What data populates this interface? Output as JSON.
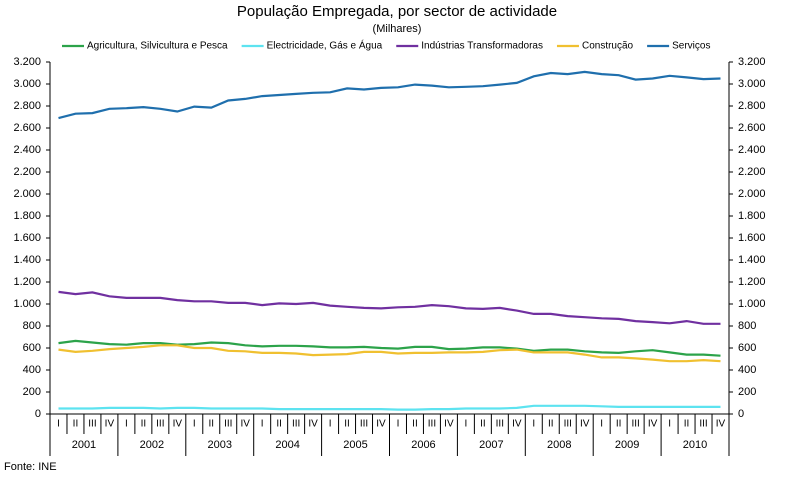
{
  "chart_data": {
    "type": "line",
    "title": "População Empregada, por sector de actividade",
    "subtitle": "(Milhares)",
    "source": "Fonte: INE",
    "categories": [
      "I",
      "II",
      "III",
      "IV",
      "I",
      "II",
      "III",
      "IV",
      "I",
      "II",
      "III",
      "IV",
      "I",
      "II",
      "III",
      "IV",
      "I",
      "II",
      "III",
      "IV",
      "I",
      "II",
      "III",
      "IV",
      "I",
      "II",
      "III",
      "IV",
      "I",
      "II",
      "III",
      "IV",
      "I",
      "II",
      "III",
      "IV",
      "I",
      "II",
      "III",
      "IV"
    ],
    "x_groups": [
      "2001",
      "2002",
      "2003",
      "2004",
      "2005",
      "2006",
      "2007",
      "2008",
      "2009",
      "2010"
    ],
    "series": [
      {
        "name": "Agricultura, Silvicultura e Pesca",
        "color": "#2ca34a",
        "values": [
          645,
          665,
          650,
          635,
          630,
          645,
          645,
          630,
          635,
          650,
          645,
          625,
          615,
          620,
          620,
          615,
          605,
          605,
          610,
          600,
          595,
          610,
          610,
          590,
          595,
          605,
          605,
          595,
          575,
          585,
          585,
          570,
          560,
          555,
          570,
          580,
          560,
          540,
          540,
          530
        ]
      },
      {
        "name": "Electricidade, Gás e Água",
        "color": "#5de3f0",
        "values": [
          50,
          50,
          50,
          55,
          55,
          55,
          50,
          55,
          55,
          50,
          50,
          50,
          50,
          45,
          45,
          45,
          45,
          45,
          45,
          45,
          40,
          40,
          45,
          45,
          50,
          50,
          50,
          55,
          75,
          75,
          75,
          75,
          70,
          65,
          65,
          65,
          65,
          65,
          65,
          65
        ]
      },
      {
        "name": "Indústrias Transformadoras",
        "color": "#7030a0",
        "values": [
          1110,
          1090,
          1105,
          1070,
          1055,
          1055,
          1055,
          1035,
          1025,
          1025,
          1010,
          1010,
          990,
          1005,
          1000,
          1010,
          985,
          975,
          965,
          960,
          970,
          975,
          990,
          980,
          960,
          955,
          965,
          940,
          910,
          910,
          890,
          880,
          870,
          865,
          845,
          835,
          825,
          845,
          820,
          820
        ]
      },
      {
        "name": "Construção",
        "color": "#f0c030",
        "values": [
          585,
          565,
          575,
          590,
          600,
          610,
          625,
          625,
          600,
          600,
          575,
          570,
          555,
          555,
          550,
          535,
          540,
          545,
          565,
          565,
          550,
          555,
          555,
          560,
          560,
          565,
          580,
          585,
          560,
          560,
          560,
          540,
          515,
          515,
          505,
          495,
          480,
          480,
          490,
          480
        ]
      },
      {
        "name": "Serviços",
        "color": "#1f6fad",
        "values": [
          2690,
          2730,
          2735,
          2775,
          2780,
          2790,
          2775,
          2750,
          2795,
          2785,
          2850,
          2865,
          2890,
          2900,
          2910,
          2920,
          2925,
          2960,
          2950,
          2965,
          2970,
          2995,
          2985,
          2970,
          2975,
          2980,
          2995,
          3010,
          3070,
          3100,
          3090,
          3110,
          3090,
          3080,
          3040,
          3050,
          3075,
          3060,
          3045,
          3050
        ]
      }
    ],
    "ylim": [
      0,
      3200
    ],
    "yticks": [
      0,
      200,
      400,
      600,
      800,
      {
        "value": 1000,
        "label": "1.000"
      },
      {
        "value": 1200,
        "label": "1.200"
      },
      {
        "value": 1400,
        "label": "1.400"
      },
      {
        "value": 1600,
        "label": "1.600"
      },
      {
        "value": 1800,
        "label": "1.800"
      },
      {
        "value": 2000,
        "label": "2.000"
      },
      {
        "value": 2200,
        "label": "2.200"
      },
      {
        "value": 2400,
        "label": "2.400"
      },
      {
        "value": 2600,
        "label": "2.600"
      },
      {
        "value": 2800,
        "label": "2.800"
      },
      {
        "value": 3000,
        "label": "3.000"
      },
      {
        "value": 3200,
        "label": "3.200"
      }
    ],
    "y2lim": [
      0,
      3200
    ],
    "y2ticks": [
      0,
      200,
      400,
      600,
      800,
      {
        "value": 1000,
        "label": "1.000"
      },
      {
        "value": 1200,
        "label": "1.200"
      },
      {
        "value": 1400,
        "label": "1.400"
      },
      {
        "value": 1600,
        "label": "1.600"
      },
      {
        "value": 1800,
        "label": "1.800"
      },
      {
        "value": 2000,
        "label": "2.000"
      },
      {
        "value": 2200,
        "label": "2.200"
      },
      {
        "value": 2400,
        "label": "2.400"
      },
      {
        "value": 2600,
        "label": "2.600"
      },
      {
        "value": 2800,
        "label": "2.800"
      },
      {
        "value": 3000,
        "label": "3.000"
      },
      {
        "value": 3200,
        "label": "3.200"
      }
    ],
    "legend": "top",
    "grid": false
  }
}
